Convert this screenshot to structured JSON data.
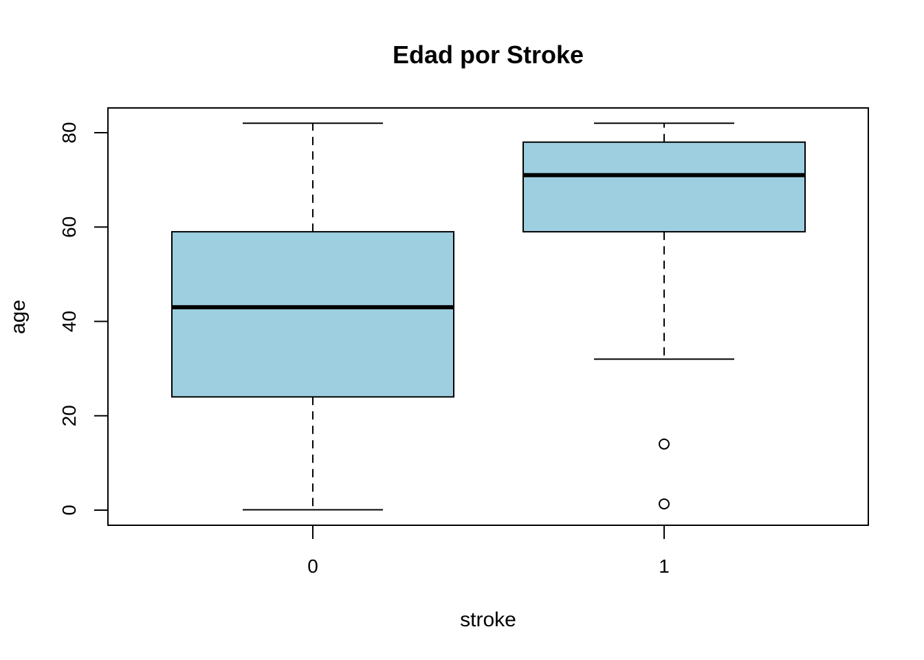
{
  "chart_data": {
    "type": "boxplot",
    "title": "Edad por Stroke",
    "xlabel": "stroke",
    "ylabel": "age",
    "categories": [
      "0",
      "1"
    ],
    "ylim": [
      -3,
      85
    ],
    "yticks": [
      0,
      20,
      40,
      60,
      80
    ],
    "ytick_labels": [
      "0",
      "20",
      "40",
      "60",
      "80"
    ],
    "boxes": [
      {
        "category": "0",
        "whisker_low": 0.08,
        "q1": 24,
        "median": 43,
        "q3": 59,
        "whisker_high": 82,
        "outliers": []
      },
      {
        "category": "1",
        "whisker_low": 32,
        "q1": 59,
        "median": 71,
        "q3": 78,
        "whisker_high": 82,
        "outliers": [
          14,
          1.32
        ]
      }
    ],
    "box_color": "#9ecfe0",
    "line_color": "#000000",
    "grid": false,
    "legend": "none"
  }
}
